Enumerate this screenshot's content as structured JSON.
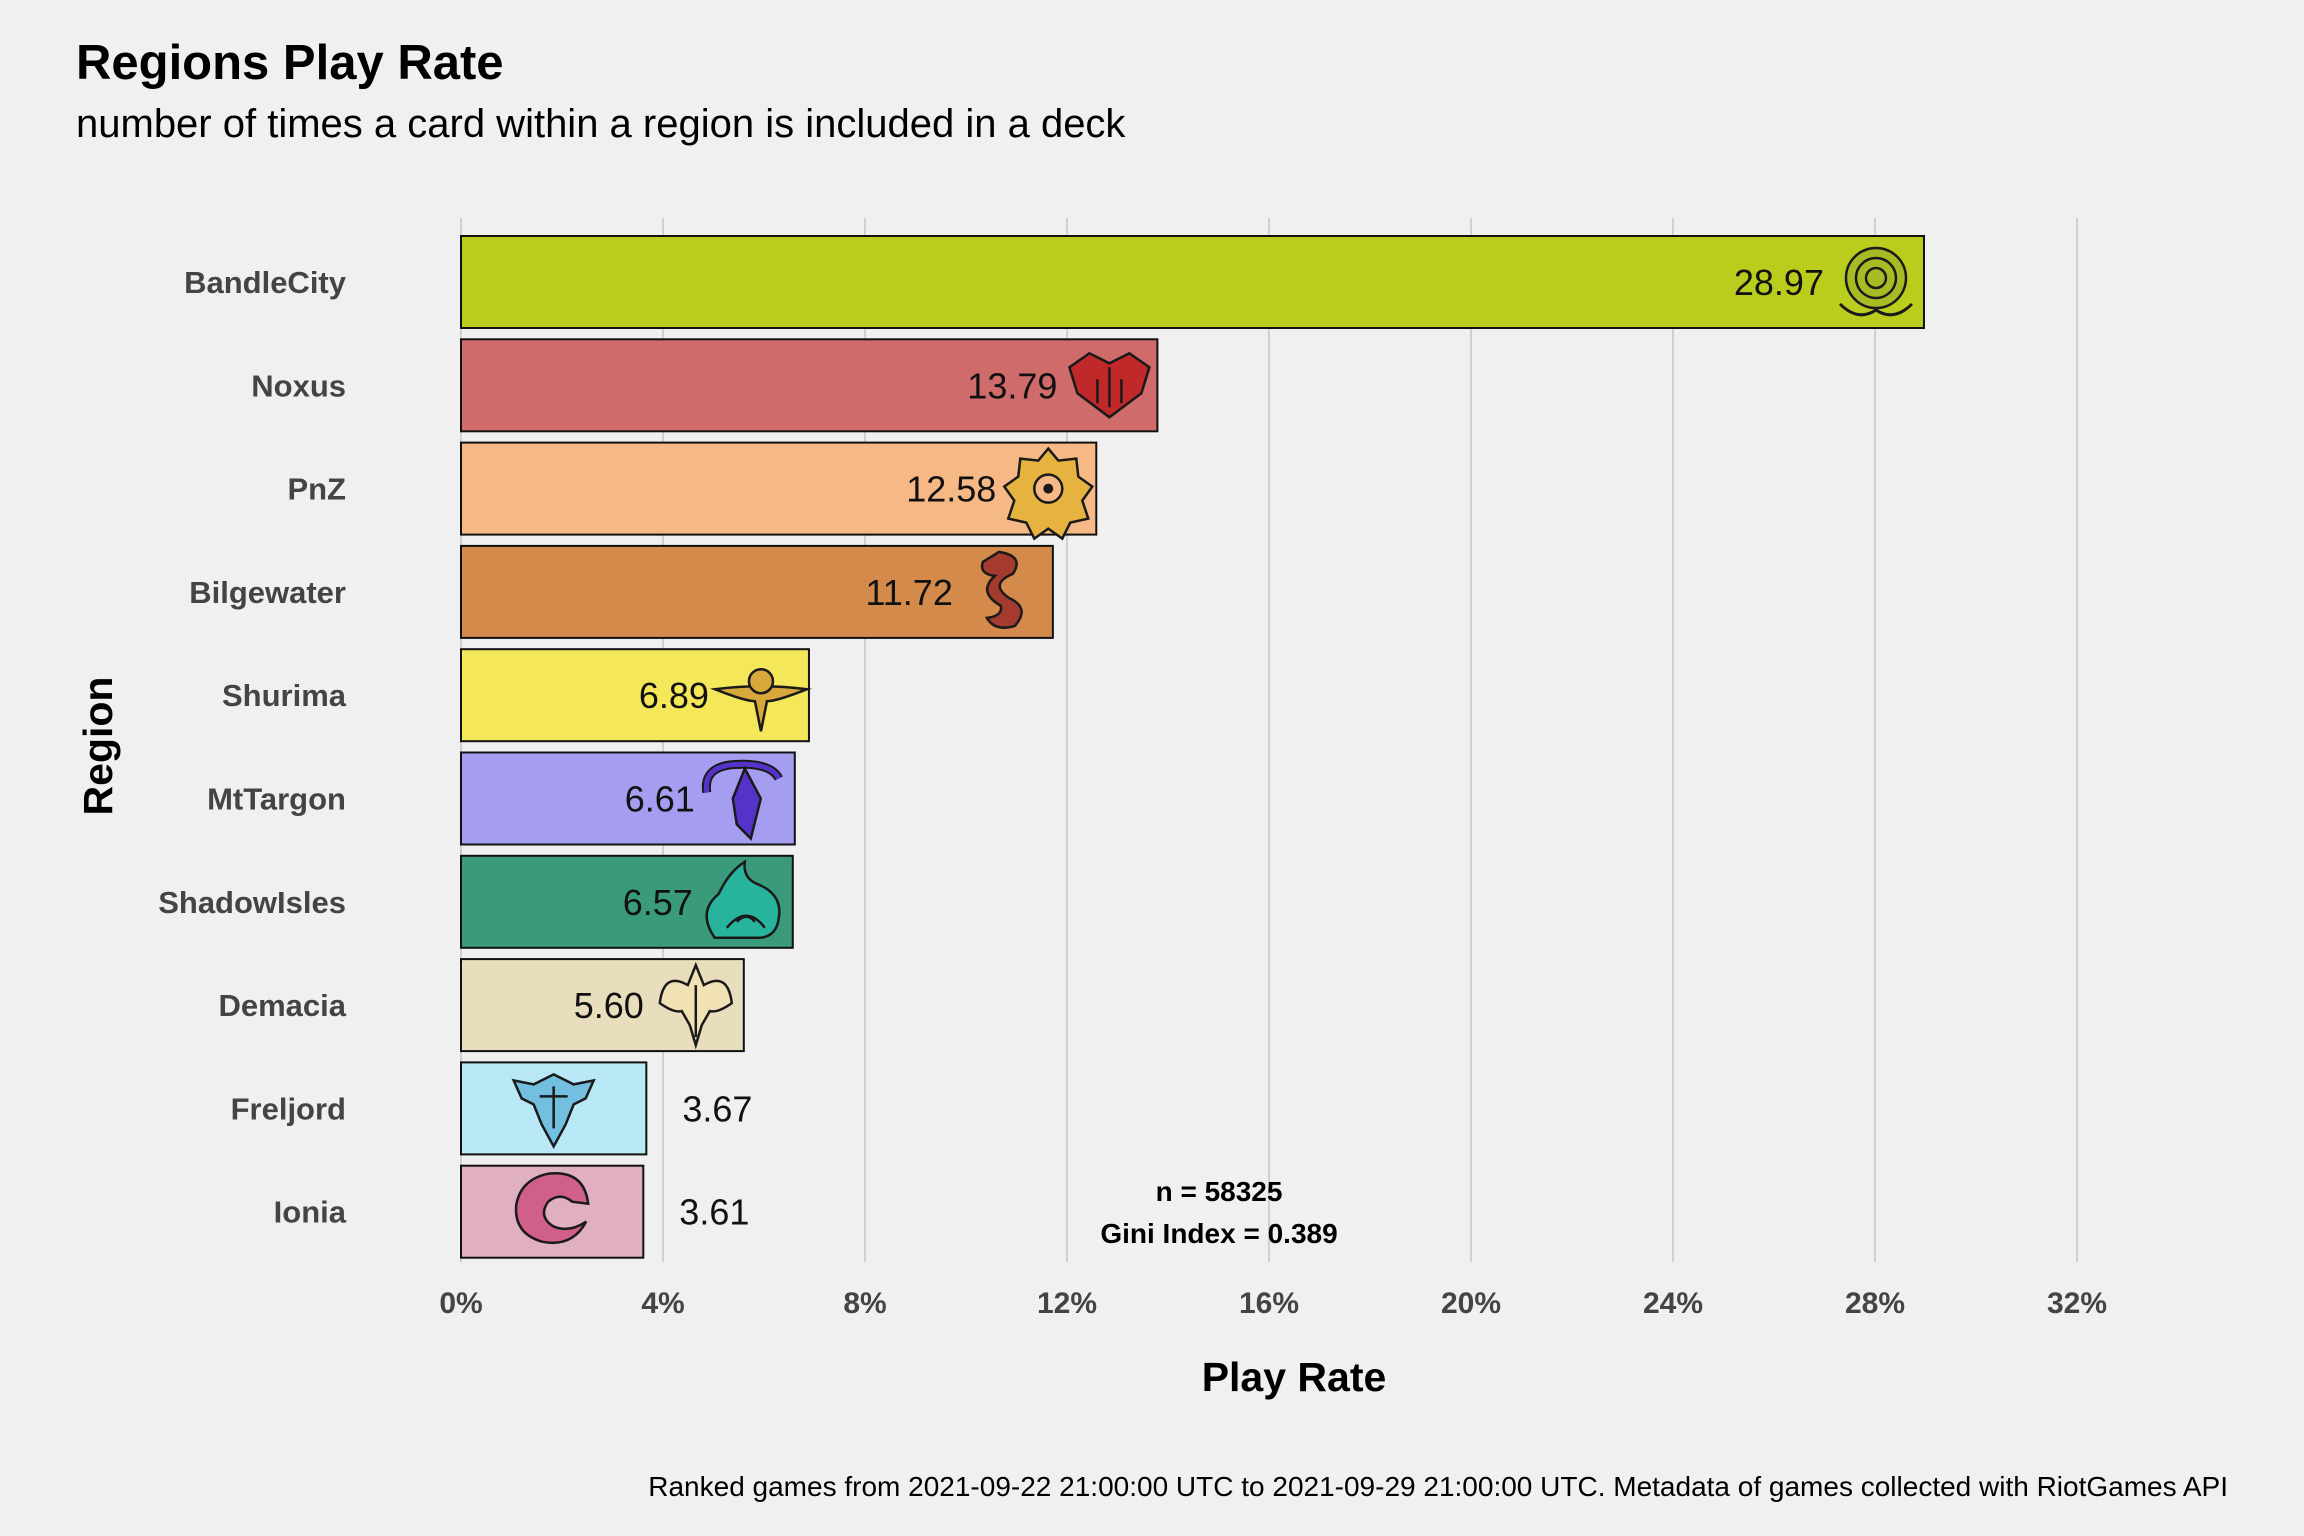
{
  "chart_data": {
    "type": "bar",
    "orientation": "horizontal",
    "title": "Regions Play Rate",
    "subtitle": "number of times a card within a region is included in a deck",
    "xlabel": "Play Rate",
    "ylabel": "Region",
    "xlim": [
      0,
      33
    ],
    "x_ticks": [
      "0%",
      "4%",
      "8%",
      "12%",
      "16%",
      "20%",
      "24%",
      "28%",
      "32%"
    ],
    "x_tick_values": [
      0,
      4,
      8,
      12,
      16,
      20,
      24,
      28,
      32
    ],
    "grid": "vertical major gridlines",
    "legend": "none",
    "categories": [
      "BandleCity",
      "Noxus",
      "PnZ",
      "Bilgewater",
      "Shurima",
      "MtTargon",
      "ShadowIsles",
      "Demacia",
      "Freljord",
      "Ionia"
    ],
    "values": [
      28.97,
      13.79,
      12.58,
      11.72,
      6.89,
      6.61,
      6.57,
      5.6,
      3.67,
      3.61
    ],
    "value_labels": [
      "28.97",
      "13.79",
      "12.58",
      "11.72",
      "6.89",
      "6.61",
      "6.57",
      "5.60",
      "3.67",
      "3.61"
    ],
    "colors": [
      "#bacd1c",
      "#cf6b6b",
      "#f6b985",
      "#d48a4b",
      "#f4e85a",
      "#a59df0",
      "#3a9b7c",
      "#e8ddbc",
      "#b8e8f5",
      "#e0afc1"
    ],
    "icons": [
      "bandlecity-icon",
      "noxus-icon",
      "pnz-icon",
      "bilgewater-icon",
      "shurima-icon",
      "mttargon-icon",
      "shadowisles-icon",
      "demacia-icon",
      "freljord-icon",
      "ionia-icon"
    ],
    "icon_colors": [
      "#a9bb24",
      "#c0282a",
      "#e6b340",
      "#a53a2e",
      "#d8a93a",
      "#5533c8",
      "#28b49c",
      "#f0e2b5",
      "#73bfe0",
      "#d0608a"
    ],
    "annotations": [
      "n = 58325",
      "Gini Index = 0.389"
    ],
    "caption": "Ranked games from 2021-09-22 21:00:00 UTC to 2021-09-29 21:00:00 UTC. Metadata of games collected with RiotGames API"
  }
}
